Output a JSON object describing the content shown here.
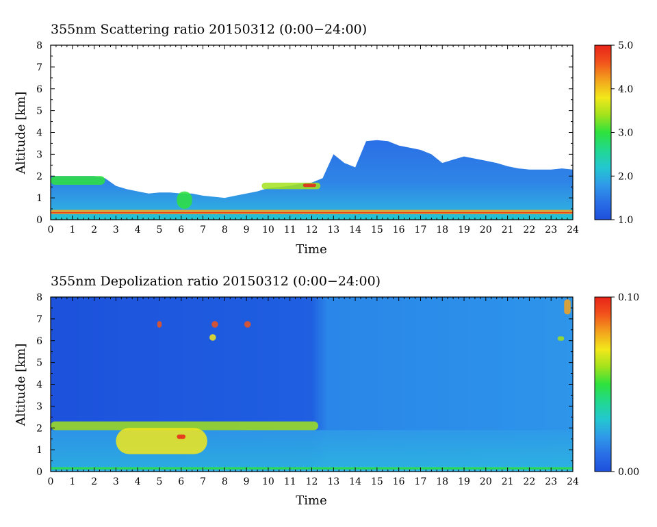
{
  "colors": {
    "scale": [
      "#1d4fdc",
      "#2a6fe6",
      "#2f9ae8",
      "#23c7cf",
      "#22d890",
      "#2ee23d",
      "#a2e21c",
      "#f2e81b",
      "#f3a31d",
      "#f2541b",
      "#e8231a"
    ],
    "frame": "#000000",
    "background": "#ffffff"
  },
  "chart_data": [
    {
      "type": "heatmap",
      "title": "355nm Scattering ratio  20150312 (0:00−24:00)",
      "xlabel": "Time",
      "ylabel": "Altitude [km]",
      "xlim": [
        0,
        24
      ],
      "ylim": [
        0,
        8
      ],
      "x_ticks": [
        "0",
        "1",
        "2",
        "3",
        "4",
        "5",
        "6",
        "7",
        "8",
        "9",
        "10",
        "11",
        "12",
        "13",
        "14",
        "15",
        "16",
        "17",
        "18",
        "19",
        "20",
        "21",
        "22",
        "23",
        "24"
      ],
      "y_ticks": [
        "0",
        "1",
        "2",
        "3",
        "4",
        "5",
        "6",
        "7",
        "8"
      ],
      "colorbar": {
        "min": 1.0,
        "max": 5.0,
        "labels": [
          "1.0",
          "2.0",
          "3.0",
          "4.0",
          "5.0"
        ]
      },
      "signal_top_km": [
        {
          "t": 0,
          "z": 2.0
        },
        {
          "t": 0.5,
          "z": 2.0
        },
        {
          "t": 1,
          "z": 2.0
        },
        {
          "t": 1.5,
          "z": 2.0
        },
        {
          "t": 2,
          "z": 2.0
        },
        {
          "t": 2.5,
          "z": 1.9
        },
        {
          "t": 3,
          "z": 1.55
        },
        {
          "t": 3.5,
          "z": 1.4
        },
        {
          "t": 4,
          "z": 1.3
        },
        {
          "t": 4.5,
          "z": 1.2
        },
        {
          "t": 5,
          "z": 1.25
        },
        {
          "t": 5.5,
          "z": 1.25
        },
        {
          "t": 6,
          "z": 1.2
        },
        {
          "t": 6.5,
          "z": 1.2
        },
        {
          "t": 7,
          "z": 1.1
        },
        {
          "t": 7.5,
          "z": 1.05
        },
        {
          "t": 8,
          "z": 1.0
        },
        {
          "t": 8.5,
          "z": 1.1
        },
        {
          "t": 9,
          "z": 1.2
        },
        {
          "t": 9.5,
          "z": 1.3
        },
        {
          "t": 10,
          "z": 1.45
        },
        {
          "t": 10.5,
          "z": 1.5
        },
        {
          "t": 11,
          "z": 1.55
        },
        {
          "t": 11.5,
          "z": 1.65
        },
        {
          "t": 12,
          "z": 1.7
        },
        {
          "t": 12.5,
          "z": 1.9
        },
        {
          "t": 13,
          "z": 3.0
        },
        {
          "t": 13.5,
          "z": 2.6
        },
        {
          "t": 14,
          "z": 2.4
        },
        {
          "t": 14.5,
          "z": 3.6
        },
        {
          "t": 15,
          "z": 3.65
        },
        {
          "t": 15.5,
          "z": 3.6
        },
        {
          "t": 16,
          "z": 3.4
        },
        {
          "t": 16.5,
          "z": 3.3
        },
        {
          "t": 17,
          "z": 3.2
        },
        {
          "t": 17.5,
          "z": 3.0
        },
        {
          "t": 18,
          "z": 2.6
        },
        {
          "t": 18.5,
          "z": 2.75
        },
        {
          "t": 19,
          "z": 2.9
        },
        {
          "t": 19.5,
          "z": 2.8
        },
        {
          "t": 20,
          "z": 2.7
        },
        {
          "t": 20.5,
          "z": 2.6
        },
        {
          "t": 21,
          "z": 2.45
        },
        {
          "t": 21.5,
          "z": 2.35
        },
        {
          "t": 22,
          "z": 2.3
        },
        {
          "t": 22.5,
          "z": 2.3
        },
        {
          "t": 23,
          "z": 2.3
        },
        {
          "t": 23.5,
          "z": 2.35
        },
        {
          "t": 24,
          "z": 2.3
        }
      ],
      "features": [
        {
          "t0": 0,
          "t1": 2.5,
          "z0": 1.6,
          "z1": 2.0,
          "value": 3.0
        },
        {
          "t0": 9.7,
          "t1": 12.4,
          "z0": 1.4,
          "z1": 1.7,
          "value": 3.5
        },
        {
          "t0": 11.6,
          "t1": 12.2,
          "z0": 1.5,
          "z1": 1.65,
          "value": 4.8
        },
        {
          "t0": 5.8,
          "t1": 6.5,
          "z0": 0.5,
          "z1": 1.3,
          "value": 3.0
        },
        {
          "t0": 0,
          "t1": 24,
          "z0": 0.25,
          "z1": 0.45,
          "value": 4.0
        },
        {
          "t0": 0,
          "t1": 24,
          "z0": 0.3,
          "z1": 0.34,
          "value": 5.0
        }
      ]
    },
    {
      "type": "heatmap",
      "title": "355nm Depolization ratio  20150312 (0:00−24:00)",
      "xlabel": "Time",
      "ylabel": "Altitude [km]",
      "xlim": [
        0,
        24
      ],
      "ylim": [
        0,
        8
      ],
      "x_ticks": [
        "0",
        "1",
        "2",
        "3",
        "4",
        "5",
        "6",
        "7",
        "8",
        "9",
        "10",
        "11",
        "12",
        "13",
        "14",
        "15",
        "16",
        "17",
        "18",
        "19",
        "20",
        "21",
        "22",
        "23",
        "24"
      ],
      "y_ticks": [
        "0",
        "1",
        "2",
        "3",
        "4",
        "5",
        "6",
        "7",
        "8"
      ],
      "colorbar": {
        "min": 0.0,
        "max": 0.1,
        "labels": [
          "0.00",
          "0.10"
        ]
      },
      "features": [
        {
          "t0": 0,
          "t1": 12.3,
          "z0": 1.9,
          "z1": 2.3,
          "value": 0.06
        },
        {
          "t0": 3,
          "t1": 7.2,
          "z0": 0.8,
          "z1": 2.0,
          "value": 0.07
        },
        {
          "t0": 5.8,
          "t1": 6.2,
          "z0": 1.5,
          "z1": 1.7,
          "value": 0.1
        },
        {
          "t0": 4.9,
          "t1": 5.1,
          "z0": 6.6,
          "z1": 6.9,
          "value": 0.09
        },
        {
          "t0": 7.4,
          "t1": 7.7,
          "z0": 6.6,
          "z1": 6.9,
          "value": 0.09
        },
        {
          "t0": 8.9,
          "t1": 9.2,
          "z0": 6.6,
          "z1": 6.9,
          "value": 0.09
        },
        {
          "t0": 7.3,
          "t1": 7.6,
          "z0": 6.0,
          "z1": 6.3,
          "value": 0.07
        },
        {
          "t0": 23.3,
          "t1": 23.6,
          "z0": 6.0,
          "z1": 6.2,
          "value": 0.06
        },
        {
          "t0": 23.6,
          "t1": 23.9,
          "z0": 7.2,
          "z1": 7.9,
          "value": 0.08
        },
        {
          "t0": 0,
          "t1": 24,
          "z0": 0.1,
          "z1": 0.2,
          "value": 0.055
        }
      ]
    }
  ]
}
